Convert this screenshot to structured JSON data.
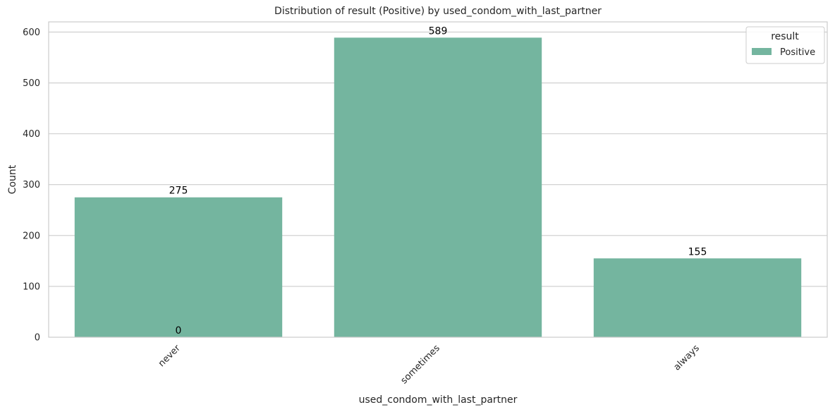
{
  "chart_data": {
    "type": "bar",
    "title": "Distribution of result (Positive) by used_condom_with_last_partner",
    "xlabel": "used_condom_with_last_partner",
    "ylabel": "Count",
    "categories": [
      "never",
      "sometimes",
      "always"
    ],
    "series": [
      {
        "name": "Positive",
        "values": [
          275,
          589,
          155
        ],
        "color": "#74b59f"
      }
    ],
    "data_labels": [
      "275",
      "589",
      "155"
    ],
    "extra_labels": [
      {
        "category": "never",
        "text": "0"
      }
    ],
    "ylim": [
      0,
      620
    ],
    "yticks": [
      0,
      100,
      200,
      300,
      400,
      500,
      600
    ],
    "grid": true,
    "legend": {
      "title": "result",
      "placement": "top-right"
    },
    "x_tick_rotation_deg": 45,
    "colors": {
      "bar": "#74b59f",
      "grid": "#cccccc",
      "frame": "#cccccc"
    }
  }
}
